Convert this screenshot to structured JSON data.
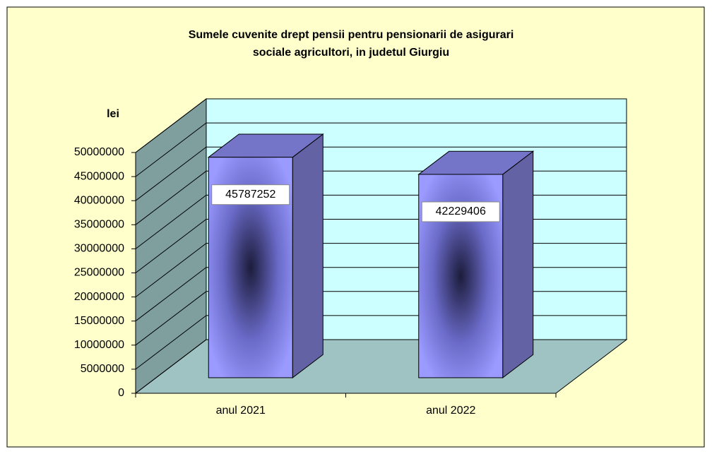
{
  "chart_data": {
    "type": "bar3d",
    "title": "Sumele cuvenite drept pensii pentru pensionarii de asigurari",
    "subtitle": "sociale agricultori, in judetul Giurgiu",
    "y_label": "lei",
    "categories": [
      "anul 2021",
      "anul 2022"
    ],
    "values": [
      45787252,
      42229406
    ],
    "color": "#9999ff",
    "ylim": [
      0,
      50000000
    ],
    "yticks": [
      0,
      5000000,
      10000000,
      15000000,
      20000000,
      25000000,
      30000000,
      35000000,
      40000000,
      45000000,
      50000000
    ],
    "grid": true
  }
}
